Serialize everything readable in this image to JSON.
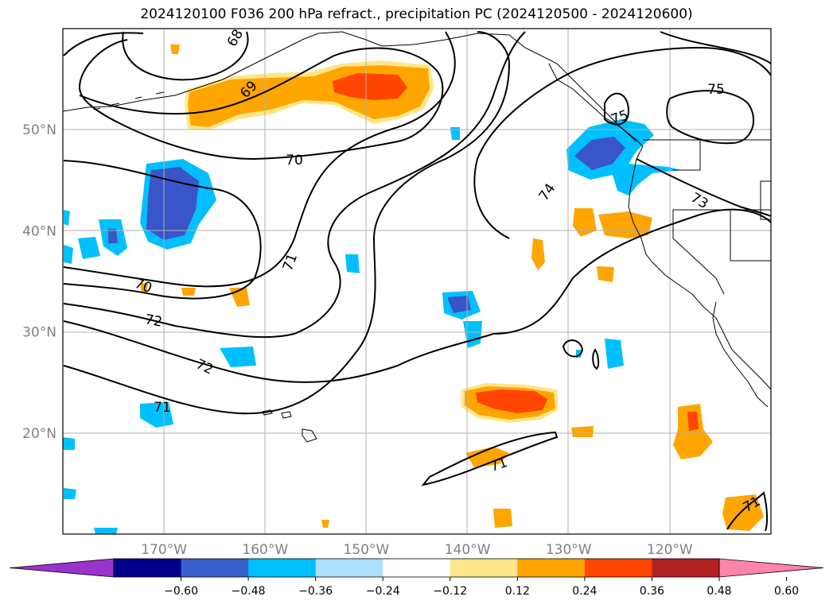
{
  "title": "2024120100 F036 200 hPa refract., precipitation PC (2024120500 - 2024120600)",
  "map": {
    "lon_range": [
      -180,
      -110
    ],
    "lat_range": [
      10,
      60
    ],
    "lat_ticks": [
      {
        "lat": 50,
        "label": "50°N"
      },
      {
        "lat": 40,
        "label": "40°N"
      },
      {
        "lat": 30,
        "label": "30°N"
      },
      {
        "lat": 20,
        "label": "20°N"
      }
    ],
    "lon_ticks": [
      {
        "lon": -170,
        "label": "170°W"
      },
      {
        "lon": -160,
        "label": "160°W"
      },
      {
        "lon": -150,
        "label": "150°W"
      },
      {
        "lon": -140,
        "label": "140°W"
      },
      {
        "lon": -130,
        "label": "130°W"
      },
      {
        "lon": -120,
        "label": "120°W"
      }
    ],
    "contour_labels": [
      "68",
      "69",
      "70",
      "70",
      "71",
      "72",
      "72",
      "71",
      "71",
      "71",
      "74",
      "75",
      "75",
      "73"
    ],
    "colors": {
      "neg_strong": "#3a55c8",
      "neg_mid": "#00bfff",
      "neg_weak": "#aee0ff",
      "pos_weak": "#ffe68a",
      "pos_mid": "#ffa500",
      "pos_strong": "#ff4500",
      "coast": "#000000",
      "grid": "#b0b0b0"
    }
  },
  "colorbar": {
    "colors": [
      "#9933cc",
      "#00008b",
      "#3a5fcd",
      "#00bfff",
      "#addfff",
      "#ffffff",
      "#ffe68a",
      "#ffa500",
      "#ff4500",
      "#b22222",
      "#ff85a8"
    ],
    "tick_labels": [
      "−0.60",
      "−0.48",
      "−0.36",
      "−0.24",
      "−0.12",
      "0.12",
      "0.24",
      "0.36",
      "0.48",
      "0.60"
    ]
  }
}
